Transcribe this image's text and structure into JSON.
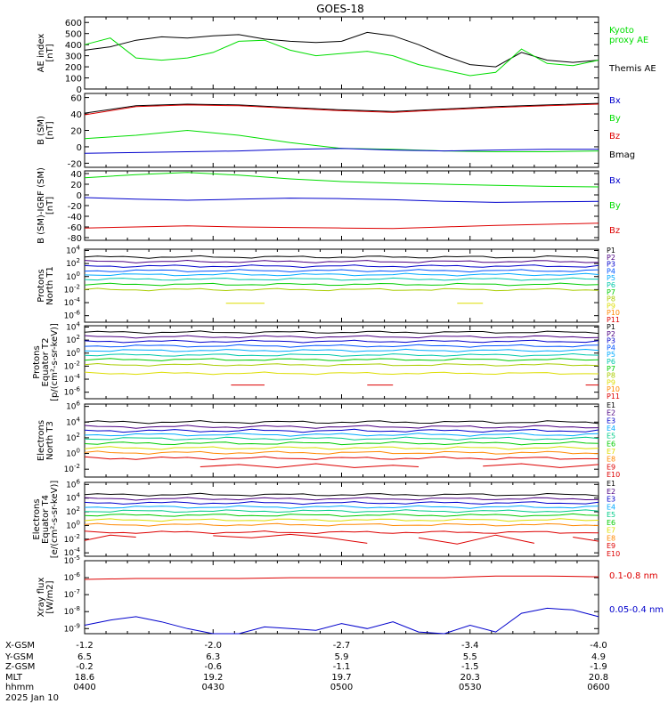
{
  "title": "GOES-18",
  "date_label": "2025 Jan 10",
  "ephemeris": {
    "row_labels": [
      "X-GSM",
      "Y-GSM",
      "Z-GSM",
      "MLT",
      "hhmm"
    ],
    "columns": [
      [
        "-1.2",
        "6.5",
        "-0.2",
        "18.6",
        "0400"
      ],
      [
        "-2.0",
        "6.3",
        "-0.6",
        "19.2",
        "0430"
      ],
      [
        "-2.7",
        "5.9",
        "-1.1",
        "19.7",
        "0500"
      ],
      [
        "-3.4",
        "5.5",
        "-1.5",
        "20.3",
        "0530"
      ],
      [
        "-4.0",
        "4.9",
        "-1.9",
        "20.8",
        "0600"
      ]
    ]
  },
  "chart_data": [
    {
      "type": "line",
      "ylabel_lines": [
        "AE index",
        "[nT]"
      ],
      "y_ticks": [
        "600",
        "500",
        "400",
        "300",
        "200",
        "100",
        "0"
      ],
      "ylim": [
        0,
        650
      ],
      "x_range_hours": [
        4.0,
        6.0
      ],
      "legend": [
        {
          "lines": [
            "Kyoto",
            "proxy AE"
          ],
          "color": "#00dd00"
        },
        {
          "lines": [
            "Themis AE"
          ],
          "color": "#000000"
        }
      ],
      "series": [
        {
          "name": "Themis AE",
          "color": "#000000",
          "x": [
            4.0,
            4.1,
            4.2,
            4.3,
            4.4,
            4.5,
            4.6,
            4.7,
            4.8,
            4.9,
            5.0,
            5.1,
            5.2,
            5.3,
            5.4,
            5.5,
            5.6,
            5.7,
            5.8,
            5.9,
            6.0
          ],
          "y": [
            350,
            380,
            440,
            470,
            460,
            480,
            490,
            450,
            430,
            420,
            430,
            510,
            480,
            400,
            300,
            220,
            200,
            330,
            260,
            240,
            260
          ]
        },
        {
          "name": "Kyoto proxy AE",
          "color": "#00dd00",
          "x": [
            4.0,
            4.1,
            4.2,
            4.3,
            4.4,
            4.5,
            4.6,
            4.7,
            4.8,
            4.9,
            5.0,
            5.1,
            5.2,
            5.3,
            5.4,
            5.5,
            5.6,
            5.7,
            5.8,
            5.9,
            6.0
          ],
          "y": [
            400,
            460,
            280,
            260,
            280,
            330,
            430,
            440,
            350,
            300,
            320,
            340,
            300,
            220,
            170,
            120,
            150,
            360,
            230,
            210,
            260
          ]
        }
      ]
    },
    {
      "type": "line",
      "ylabel_lines": [
        "B (SM)",
        "[nT]"
      ],
      "y_ticks": [
        "60",
        "40",
        "20",
        "0",
        "-20"
      ],
      "ylim": [
        -25,
        65
      ],
      "x_range_hours": [
        4.0,
        6.0
      ],
      "legend": [
        {
          "lines": [
            "Bx"
          ],
          "color": "#0000cc"
        },
        {
          "lines": [
            "By"
          ],
          "color": "#00dd00"
        },
        {
          "lines": [
            "Bz"
          ],
          "color": "#dd0000"
        },
        {
          "lines": [
            "Bmag"
          ],
          "color": "#000000"
        }
      ],
      "series": [
        {
          "name": "Bmag",
          "color": "#000000",
          "x": [
            4.0,
            4.2,
            4.4,
            4.6,
            4.8,
            5.0,
            5.2,
            5.4,
            5.6,
            5.8,
            6.0
          ],
          "y": [
            41,
            50,
            52,
            51,
            48,
            45,
            43,
            46,
            49,
            51,
            53
          ]
        },
        {
          "name": "Bz",
          "color": "#dd0000",
          "x": [
            4.0,
            4.2,
            4.4,
            4.6,
            4.8,
            5.0,
            5.2,
            5.4,
            5.6,
            5.8,
            6.0
          ],
          "y": [
            39,
            49,
            51,
            50,
            47,
            44,
            42,
            45,
            48,
            50,
            52
          ]
        },
        {
          "name": "By",
          "color": "#00dd00",
          "x": [
            4.0,
            4.2,
            4.4,
            4.6,
            4.8,
            5.0,
            5.2,
            5.4,
            5.6,
            5.8,
            6.0
          ],
          "y": [
            10,
            14,
            20,
            14,
            5,
            -2,
            -3,
            -5,
            -6,
            -6,
            -5
          ]
        },
        {
          "name": "Bx",
          "color": "#0000cc",
          "x": [
            4.0,
            4.2,
            4.4,
            4.6,
            4.8,
            5.0,
            5.2,
            5.4,
            5.6,
            5.8,
            6.0
          ],
          "y": [
            -8,
            -7,
            -6,
            -5,
            -3,
            -2,
            -4,
            -5,
            -4,
            -3,
            -3
          ]
        }
      ]
    },
    {
      "type": "line",
      "ylabel_lines": [
        "B (SM)-IGRF (SM)",
        "[nT]"
      ],
      "y_ticks": [
        "40",
        "20",
        "0",
        "-20",
        "-40",
        "-60",
        "-80"
      ],
      "ylim": [
        -85,
        45
      ],
      "x_range_hours": [
        4.0,
        6.0
      ],
      "legend": [
        {
          "lines": [
            "Bx"
          ],
          "color": "#0000cc"
        },
        {
          "lines": [
            "By"
          ],
          "color": "#00dd00"
        },
        {
          "lines": [
            "Bz"
          ],
          "color": "#dd0000"
        }
      ],
      "series": [
        {
          "name": "By",
          "color": "#00dd00",
          "x": [
            4.0,
            4.2,
            4.4,
            4.6,
            4.8,
            5.0,
            5.2,
            5.4,
            5.6,
            5.8,
            6.0
          ],
          "y": [
            32,
            38,
            42,
            37,
            30,
            25,
            22,
            20,
            18,
            16,
            15
          ]
        },
        {
          "name": "Bx",
          "color": "#0000cc",
          "x": [
            4.0,
            4.2,
            4.4,
            4.6,
            4.8,
            5.0,
            5.2,
            5.4,
            5.6,
            5.8,
            6.0
          ],
          "y": [
            -5,
            -8,
            -10,
            -8,
            -6,
            -7,
            -9,
            -12,
            -14,
            -13,
            -12
          ]
        },
        {
          "name": "Bz",
          "color": "#dd0000",
          "x": [
            4.0,
            4.2,
            4.4,
            4.6,
            4.8,
            5.0,
            5.2,
            5.4,
            5.6,
            5.8,
            6.0
          ],
          "y": [
            -62,
            -60,
            -58,
            -60,
            -61,
            -62,
            -63,
            -60,
            -57,
            -55,
            -53
          ]
        }
      ]
    },
    {
      "type": "line",
      "log": true,
      "ylabel_lines": [
        "Protons",
        "North T1"
      ],
      "y_exponents": [
        4,
        2,
        0,
        -2,
        -4,
        -6
      ],
      "ylim_log10": [
        -7,
        4.2
      ],
      "x_range_hours": [
        4.0,
        6.0
      ],
      "channels": [
        "P1",
        "P2",
        "P3",
        "P4",
        "P5",
        "P6",
        "P7",
        "P8",
        "P9",
        "P10",
        "P11"
      ],
      "channel_colors": [
        "#000000",
        "#4b0082",
        "#0000cc",
        "#0055ff",
        "#00aaff",
        "#00c8aa",
        "#00cc00",
        "#aacc00",
        "#dddd00",
        "#ff8800",
        "#dd0000"
      ],
      "levels_log10": [
        3.0,
        2.3,
        1.6,
        0.9,
        0.3,
        -0.4,
        -1.2,
        -2.0
      ],
      "fragments": [
        {
          "color": "#dddd00",
          "x": [
            4.55,
            4.7
          ],
          "y": [
            -4.1,
            -4.1
          ]
        },
        {
          "color": "#dddd00",
          "x": [
            5.45,
            5.55
          ],
          "y": [
            -4.1,
            -4.1
          ]
        }
      ]
    },
    {
      "type": "line",
      "log": true,
      "ylabel_lines": [
        "Protons",
        "Equator T2",
        "[p/(cm²-s-sr-keV)]"
      ],
      "y_exponents": [
        4,
        2,
        0,
        -2,
        -4,
        -6
      ],
      "ylim_log10": [
        -7,
        4.2
      ],
      "x_range_hours": [
        4.0,
        6.0
      ],
      "channels": [
        "P1",
        "P2",
        "P3",
        "P4",
        "P5",
        "P6",
        "P7",
        "P8",
        "P9",
        "P10",
        "P11"
      ],
      "channel_colors": [
        "#000000",
        "#4b0082",
        "#0000cc",
        "#0055ff",
        "#00aaff",
        "#00c8aa",
        "#00cc00",
        "#aacc00",
        "#dddd00",
        "#ff8800",
        "#dd0000"
      ],
      "levels_log10": [
        3.2,
        2.5,
        1.8,
        1.1,
        0.4,
        -0.3,
        -1.0,
        -1.8,
        -3.1
      ],
      "fragments": [
        {
          "color": "#dd0000",
          "x": [
            4.57,
            4.7
          ],
          "y": [
            -4.9,
            -4.9
          ]
        },
        {
          "color": "#dd0000",
          "x": [
            5.1,
            5.2
          ],
          "y": [
            -4.9,
            -4.9
          ]
        },
        {
          "color": "#dd0000",
          "x": [
            5.95,
            6.0
          ],
          "y": [
            -4.9,
            -4.9
          ]
        }
      ]
    },
    {
      "type": "line",
      "log": true,
      "ylabel_lines": [
        "Electrons",
        "North T3"
      ],
      "y_exponents": [
        6,
        4,
        2,
        0,
        -2
      ],
      "ylim_log10": [
        -3,
        6.3
      ],
      "x_range_hours": [
        4.0,
        6.0
      ],
      "channels": [
        "E1",
        "E2",
        "E3",
        "E4",
        "E5",
        "E6",
        "E7",
        "E8",
        "E9",
        "E10"
      ],
      "channel_colors": [
        "#000000",
        "#4b0082",
        "#0000cc",
        "#00aaff",
        "#00cc88",
        "#00cc00",
        "#dddd00",
        "#ff8800",
        "#dd0000",
        "#dd0000"
      ],
      "levels_log10": [
        4.0,
        3.4,
        2.9,
        2.4,
        1.9,
        1.3,
        0.7,
        0.1,
        -0.6
      ],
      "fragments": [
        {
          "color": "#dd0000",
          "x": [
            4.45,
            4.6,
            4.75,
            4.9,
            5.05,
            5.2,
            5.3
          ],
          "y": [
            -1.7,
            -1.4,
            -1.8,
            -1.3,
            -1.8,
            -1.5,
            -1.7
          ]
        },
        {
          "color": "#dd0000",
          "x": [
            5.55,
            5.7,
            5.85,
            6.0
          ],
          "y": [
            -1.6,
            -1.3,
            -1.8,
            -1.4
          ]
        }
      ]
    },
    {
      "type": "line",
      "log": true,
      "ylabel_lines": [
        "Electrons",
        "Equator T4",
        "[e/(cm²-s-sr-keV)]"
      ],
      "y_exponents": [
        6,
        4,
        2,
        0,
        -2,
        -4
      ],
      "ylim_log10": [
        -4.5,
        6.3
      ],
      "x_range_hours": [
        4.0,
        6.0
      ],
      "channels": [
        "E1",
        "E2",
        "E3",
        "E4",
        "E5",
        "E6",
        "E7",
        "E8",
        "E9",
        "E10"
      ],
      "channel_colors": [
        "#000000",
        "#4b0082",
        "#0000cc",
        "#00aaff",
        "#00cc88",
        "#00cc00",
        "#dddd00",
        "#ff8800",
        "#dd0000",
        "#dd0000"
      ],
      "levels_log10": [
        4.5,
        3.9,
        3.3,
        2.7,
        2.1,
        1.5,
        0.8,
        0.1,
        -1.0
      ],
      "fragments": [
        {
          "color": "#dd0000",
          "x": [
            4.0,
            4.1,
            4.2
          ],
          "y": [
            -2.2,
            -1.4,
            -1.7
          ]
        },
        {
          "color": "#dd0000",
          "x": [
            4.5,
            4.65,
            4.8,
            4.95,
            5.1
          ],
          "y": [
            -1.5,
            -1.8,
            -1.3,
            -1.8,
            -2.6
          ]
        },
        {
          "color": "#dd0000",
          "x": [
            5.3,
            5.45,
            5.6,
            5.75
          ],
          "y": [
            -1.8,
            -2.7,
            -1.4,
            -2.6
          ]
        },
        {
          "color": "#dd0000",
          "x": [
            5.9,
            6.0
          ],
          "y": [
            -1.7,
            -2.3
          ]
        }
      ]
    },
    {
      "type": "line",
      "log": true,
      "ylabel_lines": [
        "Xray flux",
        "[W/m2]"
      ],
      "y_exponents": [
        -5,
        -6,
        -7,
        -8,
        -9
      ],
      "ylim_log10": [
        -9.3,
        -5
      ],
      "x_range_hours": [
        4.0,
        6.0
      ],
      "legend": [
        {
          "lines": [
            "0.1-0.8 nm"
          ],
          "color": "#dd0000"
        },
        {
          "lines": [
            "0.05-0.4 nm"
          ],
          "color": "#0000cc"
        }
      ],
      "series": [
        {
          "name": "0.1-0.8 nm",
          "color": "#dd0000",
          "x": [
            4.0,
            4.2,
            4.4,
            4.6,
            4.8,
            5.0,
            5.2,
            5.4,
            5.6,
            5.8,
            6.0
          ],
          "y": [
            -6.1,
            -6.05,
            -6.05,
            -6.05,
            -6.0,
            -6.0,
            -6.0,
            -6.0,
            -5.9,
            -5.9,
            -5.95
          ]
        },
        {
          "name": "0.05-0.4 nm",
          "color": "#0000cc",
          "x": [
            4.0,
            4.1,
            4.2,
            4.3,
            4.4,
            4.5,
            4.6,
            4.7,
            4.8,
            4.9,
            5.0,
            5.1,
            5.2,
            5.3,
            5.4,
            5.5,
            5.6,
            5.7,
            5.8,
            5.9,
            6.0
          ],
          "y": [
            -8.8,
            -8.5,
            -8.3,
            -8.6,
            -9.0,
            -9.3,
            -9.3,
            -8.9,
            -9.0,
            -9.1,
            -8.7,
            -9.0,
            -8.6,
            -9.2,
            -9.3,
            -8.8,
            -9.2,
            -8.1,
            -7.8,
            -7.9,
            -8.3
          ]
        }
      ]
    }
  ]
}
